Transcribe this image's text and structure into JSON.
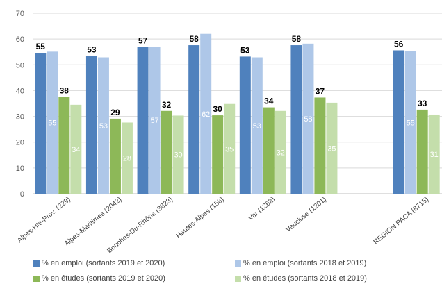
{
  "chart_data": {
    "type": "bar",
    "categories": [
      "Alpes-Hte-Prov. (229)",
      "Alpes-Maritimes (2042)",
      "Bouches-Du-Rhône (3823)",
      "Hautes-Alpes (158)",
      "Var (1262)",
      "Vaucluse (1201)",
      "",
      "REGION PACA (8715)"
    ],
    "series": [
      {
        "name": "% en emploi (sortants 2019 et 2020)",
        "color": "#4f81bd",
        "label_style": "top-bold",
        "values": [
          55,
          53,
          57,
          58,
          53,
          58,
          null,
          56
        ]
      },
      {
        "name": "% en emploi (sortants 2018 et 2019)",
        "color": "#aec7e8",
        "label_style": "inside",
        "values": [
          55,
          53,
          57,
          62,
          53,
          58,
          null,
          55
        ]
      },
      {
        "name": "% en études (sortants 2019 et 2020)",
        "color": "#8db858",
        "label_style": "top-bold",
        "values": [
          38,
          29,
          32,
          30,
          34,
          37,
          null,
          33
        ]
      },
      {
        "name": "% en études (sortants 2018 et 2019)",
        "color": "#c4deab",
        "label_style": "inside",
        "values": [
          34,
          28,
          30,
          35,
          32,
          35,
          null,
          31
        ]
      }
    ],
    "plotted_values": [
      [
        54.6,
        53.4,
        57.0,
        57.6,
        53.2,
        57.6,
        null,
        55.6
      ],
      [
        55.1,
        52.9,
        57.0,
        62.0,
        52.9,
        58.2,
        null,
        55.2
      ],
      [
        37.5,
        29.1,
        32.1,
        30.4,
        33.5,
        37.3,
        null,
        32.6
      ],
      [
        34.5,
        27.6,
        30.3,
        34.8,
        32.1,
        35.3,
        null,
        30.7
      ]
    ],
    "ylim": [
      0,
      70
    ],
    "yticks": [
      0,
      10,
      20,
      30,
      40,
      50,
      60,
      70
    ],
    "grid": true,
    "legend_position": "bottom"
  }
}
